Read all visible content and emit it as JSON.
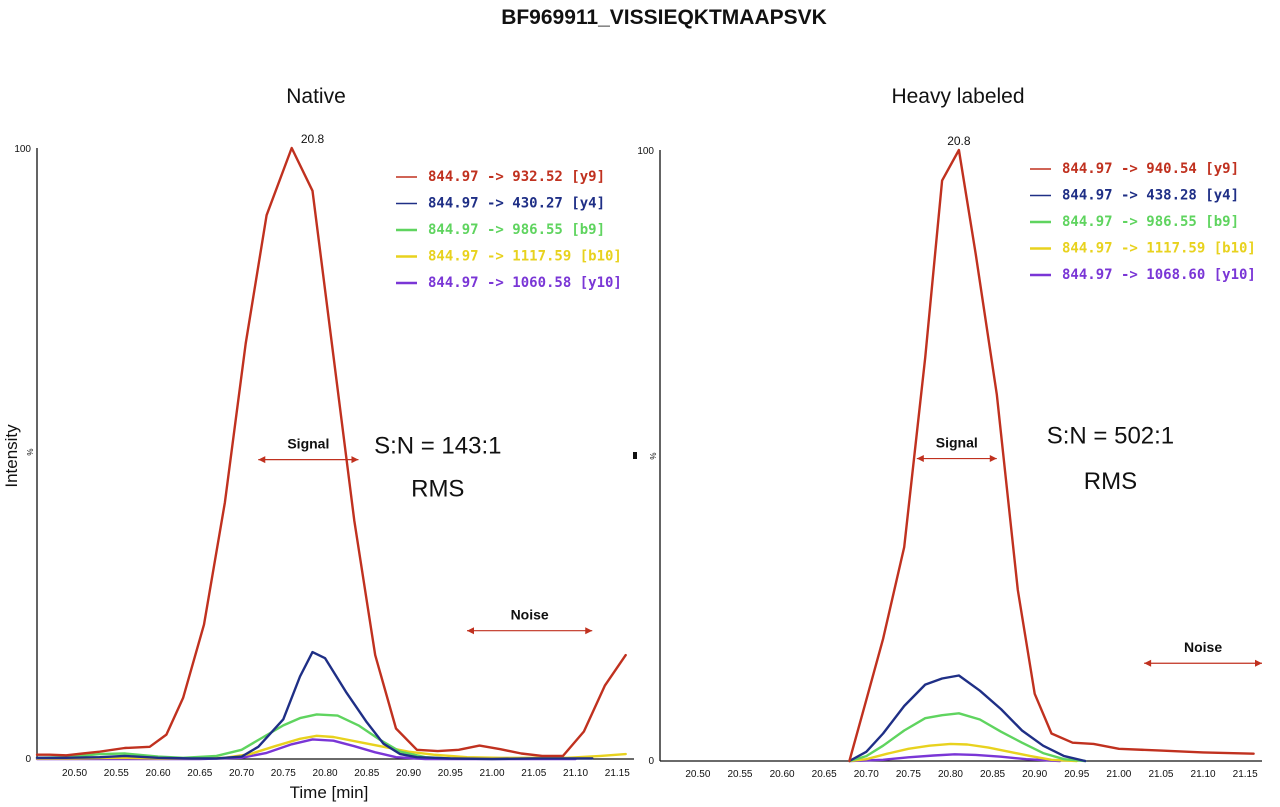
{
  "title": "BF969911_VISSIEQKTMAAPSVK",
  "y_axis_label": "Intensity",
  "x_axis_label": "Time [min]",
  "percent_symbol": "%",
  "chart_data": [
    {
      "type": "line",
      "title": "Native",
      "xlim": [
        20.455,
        21.17
      ],
      "ylim": [
        0,
        100
      ],
      "x_ticks": [
        "20.50",
        "20.55",
        "20.60",
        "20.65",
        "20.70",
        "20.75",
        "20.80",
        "20.85",
        "20.90",
        "20.95",
        "21.00",
        "21.05",
        "21.10",
        "21.15"
      ],
      "y_ticks": [
        "0",
        "100"
      ],
      "peak_label": {
        "text": "20.8",
        "x": 20.785,
        "y": 100
      },
      "annotations": {
        "signal": {
          "text": "Signal",
          "x_range": [
            20.72,
            20.84
          ],
          "y": 49
        },
        "noise": {
          "text": "Noise",
          "x_range": [
            20.97,
            21.12
          ],
          "y": 21
        },
        "sn": {
          "text": "S:N = 143:1",
          "x": 20.935,
          "y": 50
        },
        "rms": {
          "text": "RMS",
          "x": 20.935,
          "y": 43
        }
      },
      "series": [
        {
          "name": "844.97 -> 932.52 [y9]",
          "color": "#c0311f",
          "x": [
            20.455,
            20.47,
            20.49,
            20.51,
            20.53,
            20.56,
            20.59,
            20.61,
            20.63,
            20.655,
            20.68,
            20.705,
            20.73,
            20.76,
            20.785,
            20.81,
            20.835,
            20.86,
            20.885,
            20.91,
            20.935,
            20.96,
            20.985,
            21.01,
            21.035,
            21.06,
            21.085,
            21.11,
            21.135,
            21.16
          ],
          "y": [
            0.7,
            0.7,
            0.6,
            0.9,
            1.2,
            1.8,
            2.0,
            4.0,
            10.0,
            22.0,
            42.0,
            68.0,
            89.0,
            100.0,
            93.0,
            66.0,
            39.0,
            17.0,
            5.0,
            1.5,
            1.3,
            1.5,
            2.2,
            1.6,
            0.9,
            0.5,
            0.5,
            4.5,
            12.0,
            17.0
          ]
        },
        {
          "name": "844.97 -> 430.27 [y4]",
          "color": "#1f2f86",
          "x": [
            20.455,
            20.49,
            20.53,
            20.56,
            20.6,
            20.64,
            20.67,
            20.7,
            20.72,
            20.75,
            20.77,
            20.785,
            20.8,
            20.825,
            20.85,
            20.87,
            20.89,
            20.91,
            20.95,
            21.0,
            21.05,
            21.1,
            21.12
          ],
          "y": [
            0.2,
            0.2,
            0.3,
            0.5,
            0.2,
            0.1,
            0.1,
            0.4,
            2.0,
            6.5,
            13.5,
            17.5,
            16.5,
            11.0,
            6.0,
            2.5,
            0.8,
            0.3,
            0.1,
            0.0,
            0.1,
            0.1,
            0.1
          ]
        },
        {
          "name": "844.97 -> 986.55 [b9]",
          "color": "#5fd45f",
          "x": [
            20.455,
            20.49,
            20.53,
            20.56,
            20.6,
            20.63,
            20.67,
            20.7,
            20.725,
            20.75,
            20.77,
            20.79,
            20.815,
            20.84,
            20.865,
            20.89,
            20.92,
            20.95
          ],
          "y": [
            0.2,
            0.3,
            0.8,
            0.9,
            0.4,
            0.2,
            0.5,
            1.5,
            3.5,
            5.5,
            6.7,
            7.3,
            7.1,
            5.5,
            3.2,
            1.2,
            0.3,
            0.1
          ]
        },
        {
          "name": "844.97 -> 1117.59 [b10]",
          "color": "#e8d21e",
          "x": [
            20.455,
            20.5,
            20.55,
            20.6,
            20.65,
            20.68,
            20.71,
            20.74,
            20.77,
            20.79,
            20.81,
            20.84,
            20.87,
            20.9,
            20.93,
            20.97,
            21.01,
            21.05,
            21.09,
            21.13,
            21.16
          ],
          "y": [
            0.1,
            0.1,
            0.2,
            0.1,
            0.1,
            0.2,
            0.8,
            2.1,
            3.3,
            3.8,
            3.6,
            2.8,
            2.0,
            1.2,
            0.7,
            0.3,
            0.2,
            0.2,
            0.2,
            0.5,
            0.8
          ]
        },
        {
          "name": "844.97 -> 1060.58 [y10]",
          "color": "#7a36d6",
          "x": [
            20.455,
            20.55,
            20.65,
            20.7,
            20.73,
            20.76,
            20.785,
            20.81,
            20.835,
            20.86,
            20.885,
            20.92,
            20.98,
            21.05,
            21.1
          ],
          "y": [
            0.0,
            0.0,
            0.0,
            0.2,
            1.0,
            2.4,
            3.2,
            3.0,
            2.1,
            1.1,
            0.3,
            0.0,
            0.0,
            0.0,
            0.0
          ]
        }
      ]
    },
    {
      "type": "line",
      "title": "Heavy labeled",
      "xlim": [
        20.455,
        21.17
      ],
      "ylim": [
        0,
        100
      ],
      "x_ticks": [
        "20.50",
        "20.55",
        "20.60",
        "20.65",
        "20.70",
        "20.75",
        "20.80",
        "20.85",
        "20.90",
        "20.95",
        "21.00",
        "21.05",
        "21.10",
        "21.15"
      ],
      "y_ticks": [
        "0",
        "100"
      ],
      "peak_label": {
        "text": "20.8",
        "x": 20.81,
        "y": 100
      },
      "annotations": {
        "signal": {
          "text": "Signal",
          "x_range": [
            20.76,
            20.855
          ],
          "y": 49.5
        },
        "noise": {
          "text": "Noise",
          "x_range": [
            21.03,
            21.17
          ],
          "y": 16
        },
        "sn": {
          "text": "S:N = 502:1",
          "x": 20.99,
          "y": 52
        },
        "rms": {
          "text": "RMS",
          "x": 20.99,
          "y": 44.5
        }
      },
      "series": [
        {
          "name": "844.97 -> 940.54 [y9]",
          "color": "#c0311f",
          "x": [
            20.68,
            20.7,
            20.72,
            20.745,
            20.77,
            20.79,
            20.81,
            20.83,
            20.855,
            20.88,
            20.9,
            20.92,
            20.945,
            20.97,
            21.0,
            21.05,
            21.1,
            21.16
          ],
          "y": [
            0.0,
            10.0,
            20.0,
            35.0,
            66.0,
            95.0,
            100.0,
            83.0,
            60.0,
            28.0,
            11.0,
            4.5,
            3.0,
            2.8,
            2.0,
            1.7,
            1.4,
            1.2
          ]
        },
        {
          "name": "844.97 -> 438.28 [y4]",
          "color": "#1f2f86",
          "x": [
            20.68,
            20.7,
            20.72,
            20.745,
            20.77,
            20.79,
            20.81,
            20.835,
            20.86,
            20.885,
            20.91,
            20.935,
            20.96
          ],
          "y": [
            0.0,
            1.5,
            4.5,
            9.0,
            12.5,
            13.5,
            14.0,
            11.5,
            8.5,
            5.0,
            2.5,
            0.8,
            0.0
          ]
        },
        {
          "name": "844.97 -> 986.55 [b9]",
          "color": "#5fd45f",
          "x": [
            20.68,
            20.7,
            20.72,
            20.745,
            20.77,
            20.79,
            20.81,
            20.835,
            20.86,
            20.885,
            20.91,
            20.935,
            20.96
          ],
          "y": [
            0.0,
            0.8,
            2.5,
            5.0,
            7.0,
            7.5,
            7.8,
            6.8,
            4.8,
            3.0,
            1.3,
            0.3,
            0.0
          ]
        },
        {
          "name": "844.97 -> 1117.59 [b10]",
          "color": "#e8d21e",
          "x": [
            20.68,
            20.7,
            20.725,
            20.75,
            20.775,
            20.8,
            20.82,
            20.845,
            20.87,
            20.895,
            20.92,
            20.95
          ],
          "y": [
            0.0,
            0.3,
            1.2,
            2.0,
            2.5,
            2.8,
            2.7,
            2.2,
            1.5,
            0.8,
            0.2,
            0.0
          ]
        },
        {
          "name": "844.97 -> 1068.60 [y10]",
          "color": "#7a36d6",
          "x": [
            20.68,
            20.72,
            20.75,
            20.78,
            20.805,
            20.83,
            20.86,
            20.89,
            20.93
          ],
          "y": [
            0.0,
            0.2,
            0.6,
            0.9,
            1.1,
            1.0,
            0.7,
            0.3,
            0.0
          ]
        }
      ]
    }
  ]
}
